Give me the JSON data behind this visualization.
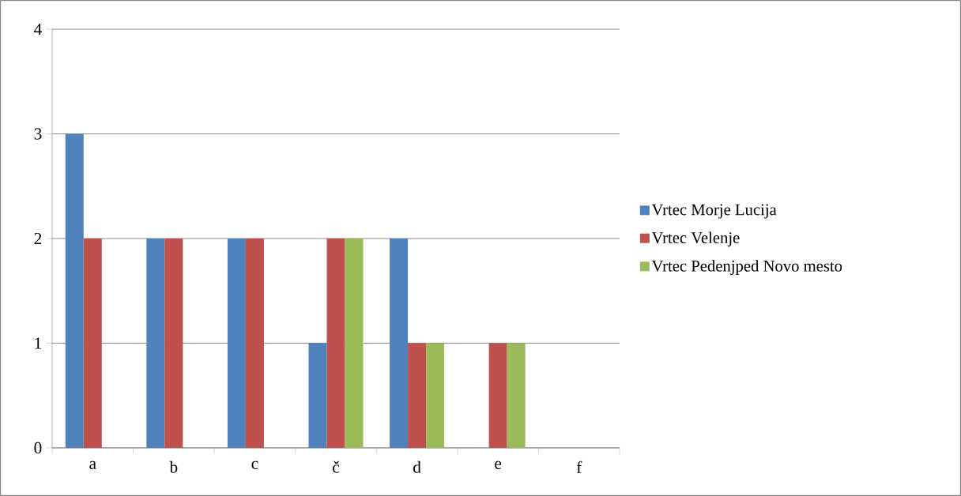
{
  "chart_data": {
    "type": "bar",
    "categories": [
      "a",
      "b",
      "c",
      "č",
      "d",
      "e",
      "f"
    ],
    "series": [
      {
        "name": "Vrtec Morje Lucija",
        "color": "#4f81bd",
        "values": [
          3,
          2,
          2,
          1,
          2,
          0,
          0
        ]
      },
      {
        "name": "Vrtec Velenje",
        "color": "#c0504d",
        "values": [
          2,
          2,
          2,
          2,
          1,
          1,
          0
        ]
      },
      {
        "name": "Vrtec Pedenjped Novo mesto",
        "color": "#9bbb59",
        "values": [
          0,
          0,
          0,
          2,
          1,
          1,
          0
        ]
      }
    ],
    "ylim": [
      0,
      4
    ],
    "yticks": [
      0,
      1,
      2,
      3,
      4
    ],
    "grid": "y",
    "legend": "right"
  }
}
